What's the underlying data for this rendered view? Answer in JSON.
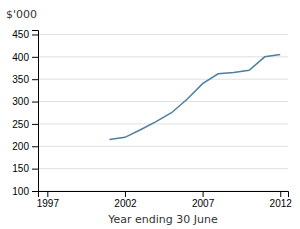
{
  "chart_data": {
    "type": "line",
    "x_label": "Year ending 30 June",
    "y_label": "$'000",
    "x": [
      2001,
      2002,
      2003,
      2004,
      2005,
      2006,
      2007,
      2008,
      2009,
      2010,
      2011,
      2012
    ],
    "values": [
      215,
      220,
      237,
      255,
      275,
      305,
      340,
      362,
      365,
      370,
      400,
      405
    ],
    "color": "#4d7fa0",
    "xlim": [
      1996.4,
      2012.5
    ],
    "xticks": [
      1997,
      2002,
      2007,
      2012
    ],
    "ylim": [
      100,
      460
    ],
    "yticks": [
      100,
      150,
      200,
      250,
      300,
      350,
      400,
      450
    ],
    "grid": true
  }
}
